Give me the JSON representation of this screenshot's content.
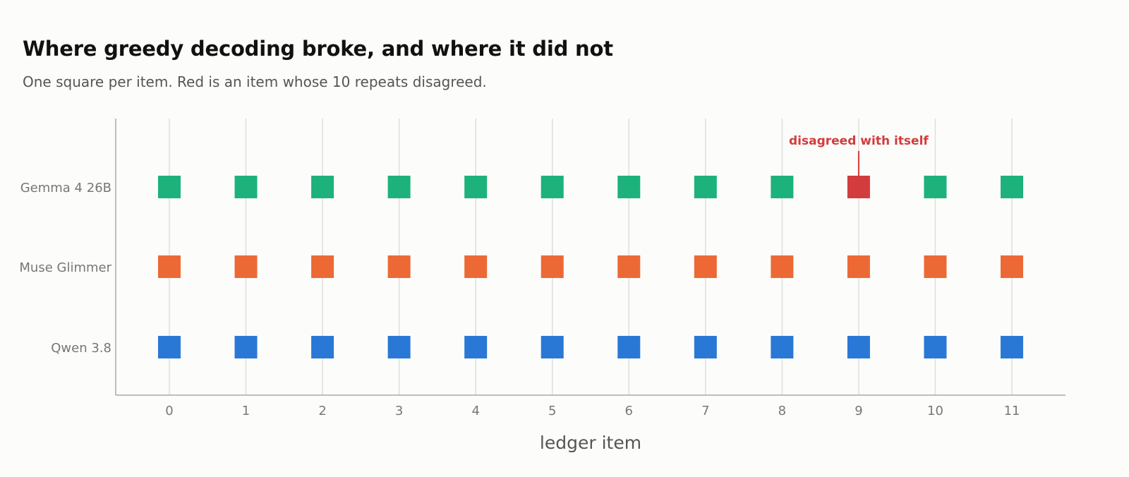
{
  "title": "Where greedy decoding broke, and where it did not",
  "subtitle": "One square per item. Red is an item whose 10 repeats disagreed.",
  "chart_data": {
    "type": "scatter",
    "xlabel": "ledger item",
    "ylabel": "",
    "x": [
      0,
      1,
      2,
      3,
      4,
      5,
      6,
      7,
      8,
      9,
      10,
      11
    ],
    "xlim": [
      -0.7,
      11.7
    ],
    "rows": [
      "Gemma 4 26B",
      "Muse Glimmer",
      "Qwen 3.8"
    ],
    "grid": "vertical",
    "colors": {
      "Gemma 4 26B": "#1db27c",
      "Muse Glimmer": "#ec6936",
      "Qwen 3.8": "#2a78d6",
      "disagreed": "#d23c3c",
      "axis": "#aaaaaa",
      "grid": "#dedede"
    },
    "disagreed": [
      {
        "row": "Gemma 4 26B",
        "x": 9
      }
    ],
    "annotation": {
      "text": "disagreed with itself",
      "row": "Gemma 4 26B",
      "x": 9
    }
  }
}
